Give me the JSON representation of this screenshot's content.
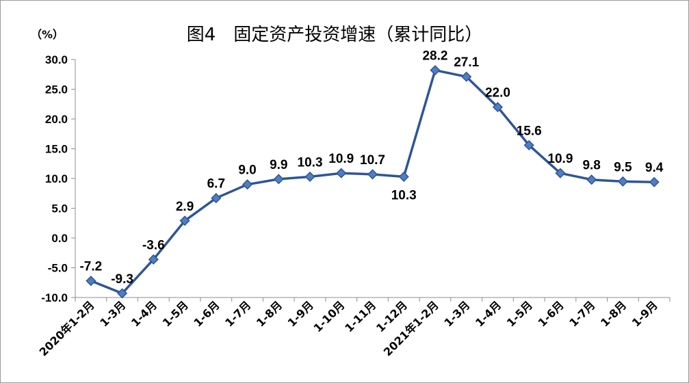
{
  "chart_data": {
    "type": "line",
    "title": "图4　固定资产投资增速（累计同比）",
    "unit_label": "（%）",
    "categories": [
      "2020年1-2月",
      "1-3月",
      "1-4月",
      "1-5月",
      "1-6月",
      "1-7月",
      "1-8月",
      "1-9月",
      "1-10月",
      "1-11月",
      "1-12月",
      "2021年1-2月",
      "1-3月",
      "1-4月",
      "1-5月",
      "1-6月",
      "1-7月",
      "1-8月",
      "1-9月"
    ],
    "values": [
      -7.2,
      -9.3,
      -3.6,
      2.9,
      6.7,
      9.0,
      9.9,
      10.3,
      10.9,
      10.7,
      10.3,
      28.2,
      27.1,
      22.0,
      15.6,
      10.9,
      9.8,
      9.5,
      9.4
    ],
    "data_labels": [
      "-7.2",
      "-9.3",
      "-3.6",
      "2.9",
      "6.7",
      "9.0",
      "9.9",
      "10.3",
      "10.9",
      "10.7",
      "10.3",
      "28.2",
      "27.1",
      "22.0",
      "15.6",
      "10.9",
      "9.8",
      "9.5",
      "9.4"
    ],
    "yticks": [
      "30.0",
      "25.0",
      "20.0",
      "15.0",
      "10.0",
      "5.0",
      "0.0",
      "-5.0",
      "-10.0"
    ],
    "ylim": [
      -10,
      30
    ],
    "grid": false,
    "legend": "none",
    "colors": {
      "line": "#2e5597",
      "marker": "#4f7fc0"
    }
  }
}
